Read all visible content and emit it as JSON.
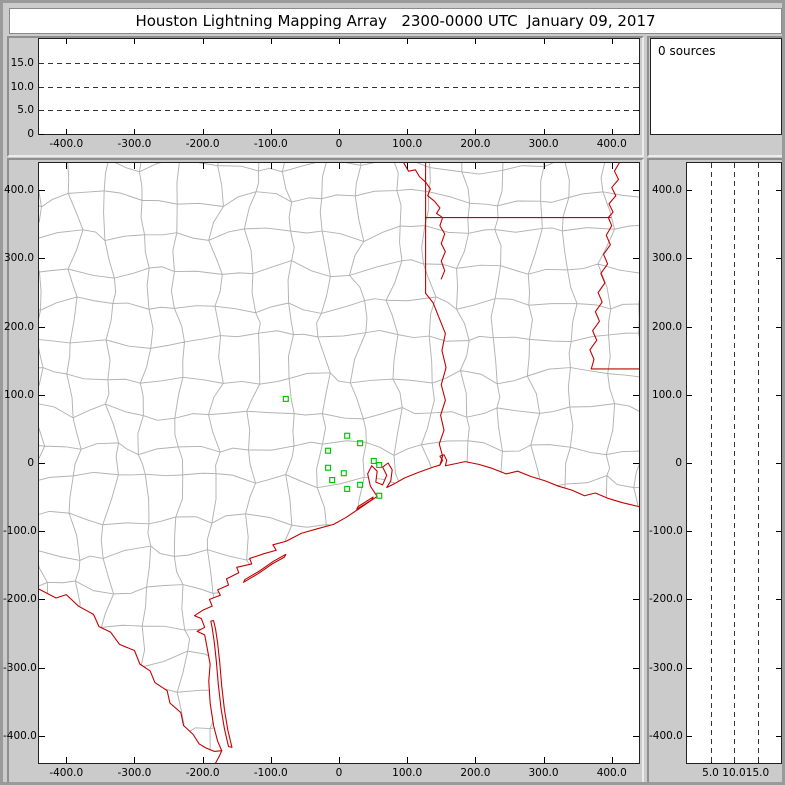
{
  "title": "Houston Lightning Mapping Array   2300-0000 UTC  January 09, 2017",
  "sources_text": "0 sources",
  "colors": {
    "window_bg": "#cbcbcb",
    "panel_bg": "#ffffff",
    "axis": "#000000",
    "county_line": "#b2b2b2",
    "state_border": "#c40000",
    "station": "#00c400",
    "gridline": "#333333"
  },
  "chart_data": [
    {
      "id": "alt-ew",
      "type": "scatter",
      "description": "Altitude vs east-west distance panel (km); empty, zero lightning sources plotted",
      "xlim": [
        -440,
        440
      ],
      "ylim": [
        0,
        20
      ],
      "x_ticks": [
        -400,
        -300,
        -200,
        -100,
        0,
        100,
        200,
        300,
        400
      ],
      "x_tick_labels": [
        "-400.0",
        "-300.0",
        "-200.0",
        "-100.0",
        "0",
        "100.0",
        "200.0",
        "300.0",
        "400.0"
      ],
      "y_ticks": [
        0,
        5,
        10,
        15
      ],
      "y_tick_labels": [
        "0",
        "5.0",
        "10.0",
        "15.0"
      ],
      "gridlines_y": [
        5,
        10,
        15
      ],
      "points": []
    },
    {
      "id": "source-count",
      "type": "table",
      "label": "0 sources",
      "value": 0
    },
    {
      "id": "plan-view-map",
      "type": "scatter",
      "description": "Plan-view map (km from network center) with county lines, state borders and green LMA station squares",
      "xlim": [
        -440,
        440
      ],
      "ylim": [
        -440,
        440
      ],
      "x_ticks": [
        -400,
        -300,
        -200,
        -100,
        0,
        100,
        200,
        300,
        400
      ],
      "x_tick_labels": [
        "-400.0",
        "-300.0",
        "-200.0",
        "-100.0",
        "0",
        "100.0",
        "200.0",
        "300.0",
        "400.0"
      ],
      "y_ticks": [
        400,
        300,
        200,
        100,
        0,
        -100,
        -200,
        -300,
        -400
      ],
      "y_tick_labels": [
        "400.0",
        "300.0",
        "200.0",
        "100.0",
        "0",
        "-100.0",
        "-200.0",
        "-300.0",
        "-400.0"
      ],
      "stations_km": [
        [
          -78,
          94
        ],
        [
          12,
          40
        ],
        [
          31,
          29
        ],
        [
          -16,
          18
        ],
        [
          -16,
          -7
        ],
        [
          7,
          -15
        ],
        [
          -10,
          -25
        ],
        [
          12,
          -38
        ],
        [
          31,
          -32
        ],
        [
          51,
          3
        ],
        [
          59,
          -3
        ],
        [
          59,
          -48
        ]
      ],
      "points": []
    },
    {
      "id": "alt-ns",
      "type": "scatter",
      "description": "North-south distance vs altitude panel (km); empty, zero lightning sources plotted",
      "xlim": [
        0,
        20
      ],
      "ylim": [
        -440,
        440
      ],
      "x_ticks": [
        5,
        10,
        15
      ],
      "x_tick_labels": [
        "5.0",
        "10.0",
        "15.0"
      ],
      "y_ticks": [
        400,
        300,
        200,
        100,
        0,
        -100,
        -200,
        -300,
        -400
      ],
      "y_tick_labels": [
        "400.0",
        "300.0",
        "200.0",
        "100.0",
        "0",
        "-100.0",
        "-200.0",
        "-300.0",
        "-400.0"
      ],
      "gridlines_x": [
        5,
        10,
        15
      ],
      "points": []
    }
  ]
}
